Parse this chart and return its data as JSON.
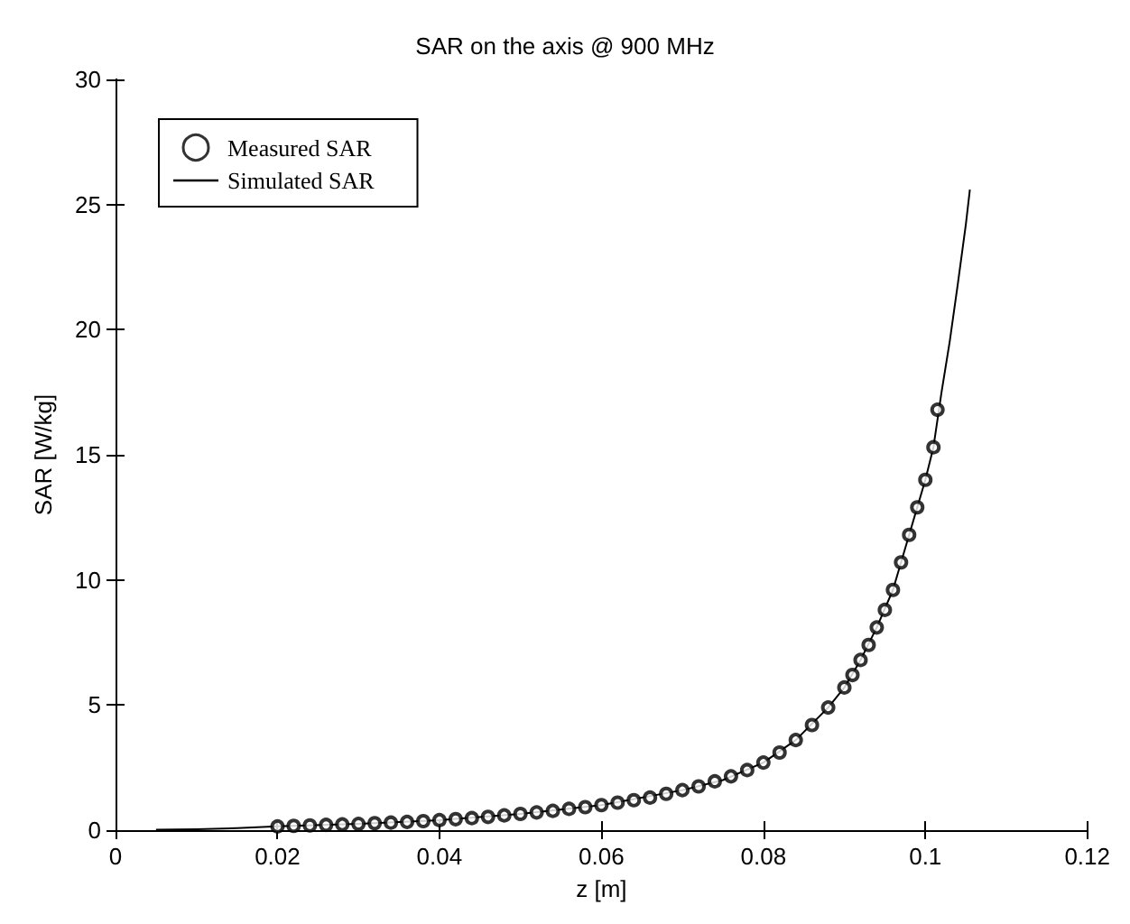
{
  "chart_data": {
    "type": "scatter",
    "title": "SAR on the axis @ 900 MHz",
    "xlabel": "z [m]",
    "ylabel": "SAR [W/kg]",
    "xlim": [
      0,
      0.12
    ],
    "xticks": [
      0,
      0.02,
      0.04,
      0.06,
      0.08,
      0.1,
      0.12
    ],
    "ylim": [
      0,
      30
    ],
    "yticks": [
      0,
      5,
      10,
      15,
      20,
      25,
      30
    ],
    "grid": false,
    "legend": "top left",
    "series": [
      {
        "name": "Measured SAR",
        "marker": "circle",
        "color": "#000000",
        "x": [
          0.02,
          0.022,
          0.024,
          0.026,
          0.028,
          0.03,
          0.032,
          0.034,
          0.036,
          0.038,
          0.04,
          0.042,
          0.044,
          0.046,
          0.048,
          0.05,
          0.052,
          0.054,
          0.056,
          0.058,
          0.06,
          0.062,
          0.064,
          0.066,
          0.068,
          0.07,
          0.072,
          0.074,
          0.076,
          0.078,
          0.08,
          0.082,
          0.084,
          0.086,
          0.088,
          0.09,
          0.091,
          0.092,
          0.093,
          0.094,
          0.095,
          0.096,
          0.097,
          0.098,
          0.099,
          0.1,
          0.101,
          0.1015
        ],
        "values": [
          0.15,
          0.17,
          0.19,
          0.21,
          0.23,
          0.25,
          0.28,
          0.3,
          0.33,
          0.36,
          0.4,
          0.44,
          0.48,
          0.53,
          0.59,
          0.65,
          0.71,
          0.77,
          0.85,
          0.92,
          1.0,
          1.1,
          1.2,
          1.3,
          1.45,
          1.6,
          1.75,
          1.95,
          2.15,
          2.4,
          2.7,
          3.1,
          3.6,
          4.2,
          4.9,
          5.7,
          6.2,
          6.8,
          7.4,
          8.1,
          8.8,
          9.6,
          10.7,
          11.8,
          12.9,
          14.0,
          15.3,
          16.8
        ]
      },
      {
        "name": "Simulated SAR",
        "type": "line",
        "marker": "none",
        "line_style": "solid",
        "color": "#000000",
        "x": [
          0.005,
          0.01,
          0.015,
          0.02,
          0.03,
          0.04,
          0.05,
          0.06,
          0.07,
          0.075,
          0.08,
          0.084,
          0.088,
          0.09,
          0.092,
          0.094,
          0.096,
          0.098,
          0.1,
          0.101,
          0.102,
          0.103,
          0.104,
          0.105,
          0.1055
        ],
        "values": [
          0.02,
          0.04,
          0.08,
          0.15,
          0.25,
          0.4,
          0.65,
          1.0,
          1.6,
          2.0,
          2.7,
          3.6,
          4.9,
          5.7,
          6.8,
          8.1,
          9.6,
          11.8,
          14.0,
          15.3,
          17.5,
          19.5,
          21.8,
          24.2,
          25.6
        ]
      }
    ]
  }
}
